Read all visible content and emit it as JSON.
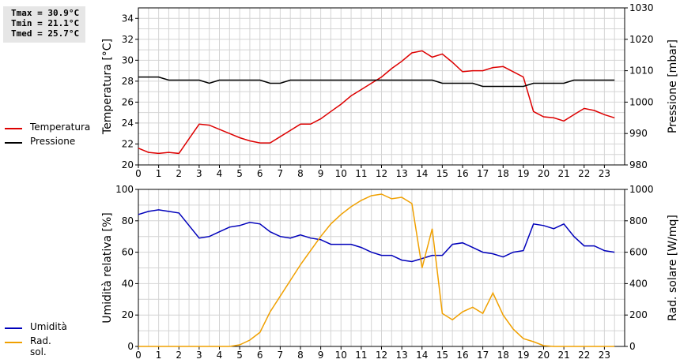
{
  "stats": {
    "tmax": "Tmax = 30.9°C",
    "tmin": "Tmin = 21.1°C",
    "tmed": "Tmed = 25.7°C"
  },
  "legend_top": [
    {
      "label": "Temperatura",
      "color": "#dd0000"
    },
    {
      "label": "Pressione",
      "color": "#000000"
    }
  ],
  "legend_bottom": [
    {
      "label": "Umidità",
      "color": "#0000bb"
    },
    {
      "label": "Rad. sol.",
      "color": "#f0a000"
    }
  ],
  "chart_data": [
    {
      "type": "line",
      "ylabel": "Temperatura [°C]",
      "y2label": "Pressione [mbar]",
      "xlim": [
        0,
        24
      ],
      "ylim": [
        20,
        35
      ],
      "y2lim": [
        980,
        1030
      ],
      "xticks": [
        "0",
        "1",
        "2",
        "3",
        "4",
        "5",
        "6",
        "7",
        "8",
        "9",
        "10",
        "11",
        "12",
        "13",
        "14",
        "15",
        "16",
        "17",
        "18",
        "19",
        "20",
        "21",
        "22",
        "23"
      ],
      "yticks": [
        "20",
        "22",
        "24",
        "26",
        "28",
        "30",
        "32",
        "34"
      ],
      "y2ticks": [
        "980",
        "990",
        "1000",
        "1010",
        "1020",
        "1030"
      ],
      "grid": true,
      "series": [
        {
          "name": "Temperatura",
          "color": "#dd0000",
          "axis": "left",
          "x": [
            0,
            0.5,
            1,
            1.5,
            2,
            2.5,
            3,
            3.5,
            4,
            4.5,
            5,
            5.5,
            6,
            6.5,
            7,
            7.5,
            8,
            8.5,
            9,
            9.5,
            10,
            10.5,
            11,
            11.5,
            12,
            12.5,
            13,
            13.5,
            14,
            14.5,
            15,
            15.5,
            16,
            16.5,
            17,
            17.5,
            18,
            18.5,
            19,
            19.5,
            20,
            20.5,
            21,
            21.5,
            22,
            22.5,
            23,
            23.5
          ],
          "y": [
            21.6,
            21.2,
            21.1,
            21.2,
            21.1,
            22.5,
            23.9,
            23.8,
            23.4,
            23.0,
            22.6,
            22.3,
            22.1,
            22.1,
            22.7,
            23.3,
            23.9,
            23.9,
            24.4,
            25.1,
            25.8,
            26.6,
            27.2,
            27.8,
            28.4,
            29.2,
            29.9,
            30.7,
            30.9,
            30.3,
            30.6,
            29.8,
            28.9,
            29.0,
            29.0,
            29.3,
            29.4,
            28.9,
            28.4,
            25.1,
            24.6,
            24.5,
            24.2,
            24.8,
            25.4,
            25.2,
            24.8,
            24.5
          ]
        },
        {
          "name": "Pressione",
          "color": "#000000",
          "axis": "right",
          "x": [
            0,
            0.5,
            1,
            1.5,
            2,
            2.5,
            3,
            3.5,
            4,
            4.5,
            5,
            5.5,
            6,
            6.5,
            7,
            7.5,
            8,
            8.5,
            9,
            9.5,
            10,
            10.5,
            11,
            11.5,
            12,
            12.5,
            13,
            13.5,
            14,
            14.5,
            15,
            15.5,
            16,
            16.5,
            17,
            17.5,
            18,
            18.5,
            19,
            19.5,
            20,
            20.5,
            21,
            21.5,
            22,
            22.5,
            23,
            23.5
          ],
          "y": [
            1008,
            1008,
            1008,
            1007,
            1007,
            1007,
            1007,
            1006,
            1007,
            1007,
            1007,
            1007,
            1007,
            1006,
            1006,
            1007,
            1007,
            1007,
            1007,
            1007,
            1007,
            1007,
            1007,
            1007,
            1007,
            1007,
            1007,
            1007,
            1007,
            1007,
            1006,
            1006,
            1006,
            1006,
            1005,
            1005,
            1005,
            1005,
            1005,
            1006,
            1006,
            1006,
            1006,
            1007,
            1007,
            1007,
            1007,
            1007
          ]
        }
      ]
    },
    {
      "type": "line",
      "ylabel": "Umidità relativa [%]",
      "y2label": "Rad. solare [W/mq]",
      "xlim": [
        0,
        24
      ],
      "ylim": [
        0,
        100
      ],
      "y2lim": [
        0,
        1000
      ],
      "xticks": [
        "0",
        "1",
        "2",
        "3",
        "4",
        "5",
        "6",
        "7",
        "8",
        "9",
        "10",
        "11",
        "12",
        "13",
        "14",
        "15",
        "16",
        "17",
        "18",
        "19",
        "20",
        "21",
        "22",
        "23"
      ],
      "yticks": [
        "0",
        "20",
        "40",
        "60",
        "80",
        "100"
      ],
      "y2ticks": [
        "0",
        "200",
        "400",
        "600",
        "800",
        "1000"
      ],
      "grid": true,
      "series": [
        {
          "name": "Umidità",
          "color": "#0000bb",
          "axis": "left",
          "x": [
            0,
            0.5,
            1,
            1.5,
            2,
            2.5,
            3,
            3.5,
            4,
            4.5,
            5,
            5.5,
            6,
            6.5,
            7,
            7.5,
            8,
            8.5,
            9,
            9.5,
            10,
            10.5,
            11,
            11.5,
            12,
            12.5,
            13,
            13.5,
            14,
            14.5,
            15,
            15.5,
            16,
            16.5,
            17,
            17.5,
            18,
            18.5,
            19,
            19.5,
            20,
            20.5,
            21,
            21.5,
            22,
            22.5,
            23,
            23.5
          ],
          "y": [
            84,
            86,
            87,
            86,
            85,
            77,
            69,
            70,
            73,
            76,
            77,
            79,
            78,
            73,
            70,
            69,
            71,
            69,
            68,
            65,
            65,
            65,
            63,
            60,
            58,
            58,
            55,
            54,
            56,
            58,
            58,
            65,
            66,
            63,
            60,
            59,
            57,
            60,
            61,
            78,
            77,
            75,
            78,
            70,
            64,
            64,
            61,
            60
          ]
        },
        {
          "name": "Rad. sol.",
          "color": "#f0a000",
          "axis": "right",
          "x": [
            0,
            0.5,
            1,
            1.5,
            2,
            2.5,
            3,
            3.5,
            4,
            4.5,
            5,
            5.5,
            6,
            6.5,
            7,
            7.5,
            8,
            8.5,
            9,
            9.5,
            10,
            10.5,
            11,
            11.5,
            12,
            12.5,
            13,
            13.5,
            14,
            14.5,
            15,
            15.5,
            16,
            16.5,
            17,
            17.5,
            18,
            18.5,
            19,
            19.5,
            20,
            20.5,
            21,
            21.5,
            22,
            22.5,
            23,
            23.5
          ],
          "y": [
            0,
            0,
            0,
            0,
            0,
            0,
            0,
            0,
            0,
            0,
            10,
            40,
            90,
            220,
            320,
            420,
            520,
            610,
            700,
            780,
            840,
            890,
            930,
            960,
            970,
            940,
            950,
            910,
            500,
            750,
            210,
            170,
            220,
            250,
            210,
            340,
            200,
            110,
            50,
            30,
            5,
            0,
            0,
            0,
            0,
            0,
            0,
            0
          ]
        }
      ]
    }
  ]
}
